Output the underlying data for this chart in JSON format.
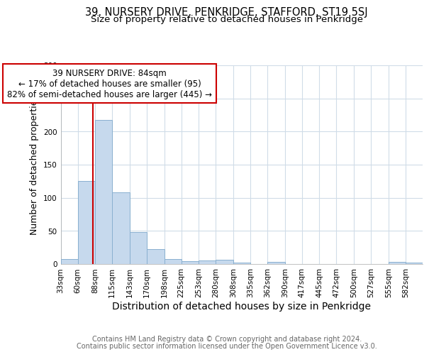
{
  "title": "39, NURSERY DRIVE, PENKRIDGE, STAFFORD, ST19 5SJ",
  "subtitle": "Size of property relative to detached houses in Penkridge",
  "xlabel": "Distribution of detached houses by size in Penkridge",
  "ylabel": "Number of detached properties",
  "footer1": "Contains HM Land Registry data © Crown copyright and database right 2024.",
  "footer2": "Contains public sector information licensed under the Open Government Licence v3.0.",
  "annotation_line1": "39 NURSERY DRIVE: 84sqm",
  "annotation_line2": "← 17% of detached houses are smaller (95)",
  "annotation_line3": "82% of semi-detached houses are larger (445) →",
  "bin_labels": [
    "33sqm",
    "60sqm",
    "88sqm",
    "115sqm",
    "143sqm",
    "170sqm",
    "198sqm",
    "225sqm",
    "253sqm",
    "280sqm",
    "308sqm",
    "335sqm",
    "362sqm",
    "390sqm",
    "417sqm",
    "445sqm",
    "472sqm",
    "500sqm",
    "527sqm",
    "555sqm",
    "582sqm"
  ],
  "bin_edges": [
    33,
    60,
    88,
    115,
    143,
    170,
    198,
    225,
    253,
    280,
    308,
    335,
    362,
    390,
    417,
    445,
    472,
    500,
    527,
    555,
    582,
    609
  ],
  "counts": [
    8,
    125,
    218,
    108,
    48,
    23,
    8,
    4,
    5,
    6,
    2,
    0,
    3,
    0,
    0,
    0,
    0,
    0,
    0,
    3,
    2
  ],
  "bar_color": "#c6d9ed",
  "bar_edge_color": "#8ab0d0",
  "property_size": 84,
  "red_line_color": "#cc0000",
  "annotation_box_edge": "#cc0000",
  "annotation_box_fill": "#ffffff",
  "ylim": [
    0,
    300
  ],
  "yticks": [
    0,
    50,
    100,
    150,
    200,
    250,
    300
  ],
  "title_fontsize": 10.5,
  "subtitle_fontsize": 9.5,
  "ylabel_fontsize": 9,
  "xlabel_fontsize": 10,
  "tick_fontsize": 7.5,
  "footer_fontsize": 7,
  "annotation_fontsize": 8.5,
  "background_color": "#ffffff",
  "grid_color": "#d0dce8"
}
